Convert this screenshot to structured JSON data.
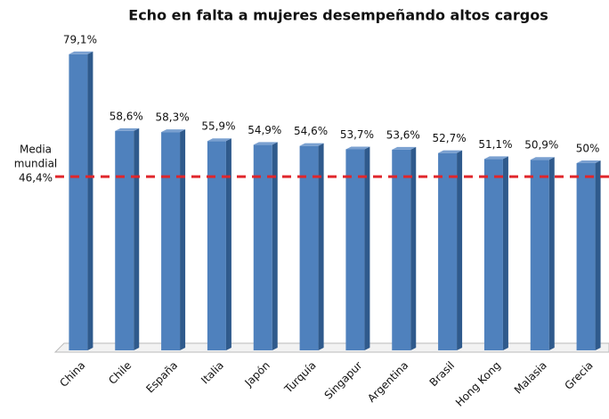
{
  "chart_data": {
    "type": "bar",
    "title": "Echo en falta a mujeres desempeñando altos cargos",
    "categories": [
      "China",
      "Chile",
      "España",
      "Italia",
      "Japón",
      "Turquía",
      "Singapur",
      "Argentina",
      "Brasil",
      "Hong Kong",
      "Malasia",
      "Grecia"
    ],
    "values": [
      79.1,
      58.6,
      58.3,
      55.9,
      54.9,
      54.6,
      53.7,
      53.6,
      52.7,
      51.1,
      50.9,
      50
    ],
    "value_labels": [
      "79,1%",
      "58,6%",
      "58,3%",
      "55,9%",
      "54,9%",
      "54,6%",
      "53,7%",
      "53,6%",
      "52,7%",
      "51,1%",
      "50,9%",
      "50%"
    ],
    "color": "#4f81bd",
    "ylim": [
      0,
      85
    ],
    "reference_line": {
      "value": 46.4,
      "label_lines": [
        "Media",
        "mundial"
      ],
      "value_label": "46,4%",
      "color": "#e0262b"
    }
  }
}
